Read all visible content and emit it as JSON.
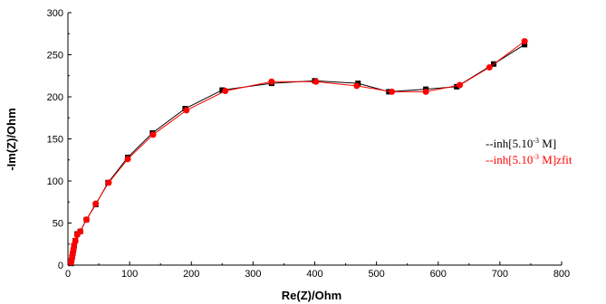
{
  "chart_data": {
    "type": "scatter",
    "title": "",
    "xlabel": "Re(Z)/Ohm",
    "ylabel": "-Im(Z)/Ohm",
    "xlim": [
      0,
      800
    ],
    "ylim": [
      0,
      300
    ],
    "xticks": [
      0,
      100,
      200,
      300,
      400,
      500,
      600,
      700,
      800
    ],
    "yticks": [
      0,
      50,
      100,
      150,
      200,
      250,
      300
    ],
    "grid": false,
    "legend_position": "right",
    "series": [
      {
        "name": "--inh[5.10-3 M]",
        "legend_prefix": "--inh[5.10",
        "legend_exponent": "-3",
        "legend_suffix": " M]",
        "color": "#000000",
        "marker": "square",
        "x": [
          5,
          6,
          7,
          8,
          9,
          10,
          12,
          15,
          20,
          30,
          45,
          65,
          97,
          137,
          190,
          250,
          330,
          400,
          470,
          520,
          580,
          630,
          690,
          740
        ],
        "y": [
          2,
          6,
          10,
          14,
          18,
          23,
          29,
          37,
          40,
          54,
          72,
          98,
          128,
          157,
          186,
          208,
          216,
          219,
          216,
          206,
          209,
          212,
          239,
          262
        ]
      },
      {
        "name": "--inh[5.10-3 M]zfit",
        "legend_prefix": "--inh[5.10",
        "legend_exponent": "-3",
        "legend_suffix": " M]zfit",
        "color": "#ff0000",
        "marker": "circle",
        "x": [
          5,
          6,
          7,
          8,
          9,
          10,
          12,
          15,
          20,
          30,
          45,
          66,
          97,
          138,
          192,
          255,
          330,
          402,
          468,
          525,
          580,
          635,
          683,
          740
        ],
        "y": [
          3,
          7,
          11,
          15,
          19,
          24,
          29,
          36,
          40,
          54,
          73,
          98,
          126,
          155,
          184,
          207,
          218,
          218,
          213,
          206,
          206,
          214,
          235,
          266
        ]
      }
    ]
  }
}
